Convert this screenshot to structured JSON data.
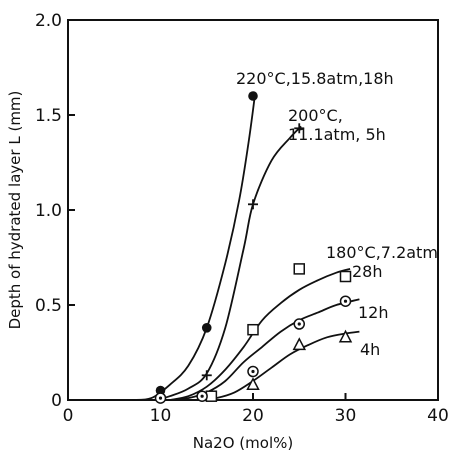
{
  "chart_data": {
    "type": "scatter",
    "xlabel": "Na2O (mol%)",
    "ylabel": "Depth of hydrated layer L (mm)",
    "xlim": [
      0,
      40
    ],
    "ylim": [
      0,
      2.0
    ],
    "x_ticks": [
      0,
      10,
      20,
      30,
      40
    ],
    "y_ticks": [
      0,
      0.5,
      1.0,
      1.5,
      2.0
    ],
    "x_tick_labels": [
      "0",
      "10",
      "20",
      "30",
      "40"
    ],
    "y_tick_labels": [
      "0",
      "0.5",
      "1.0",
      "1.5",
      "2.0"
    ],
    "grid": false,
    "series": [
      {
        "name": "220°C,15.8atm,18h",
        "marker": "filled-circle",
        "points": [
          [
            10,
            0.05
          ],
          [
            15,
            0.38
          ],
          [
            20,
            1.6
          ]
        ],
        "curve": [
          [
            7,
            0
          ],
          [
            9,
            0.01
          ],
          [
            11,
            0.08
          ],
          [
            13,
            0.18
          ],
          [
            15,
            0.38
          ],
          [
            17,
            0.72
          ],
          [
            18.5,
            1.05
          ],
          [
            19.5,
            1.35
          ],
          [
            20.2,
            1.6
          ]
        ]
      },
      {
        "name": "200°C, 11.1atm, 5h",
        "marker": "plus",
        "points": [
          [
            15,
            0.13
          ],
          [
            20,
            1.03
          ],
          [
            25,
            1.43
          ]
        ],
        "curve": [
          [
            9.5,
            0
          ],
          [
            11,
            0.02
          ],
          [
            13,
            0.06
          ],
          [
            15,
            0.14
          ],
          [
            17,
            0.38
          ],
          [
            19,
            0.8
          ],
          [
            20,
            1.03
          ],
          [
            22,
            1.26
          ],
          [
            24,
            1.38
          ],
          [
            25.2,
            1.44
          ]
        ]
      },
      {
        "name": "28h",
        "marker": "square",
        "points": [
          [
            15.5,
            0.02
          ],
          [
            20,
            0.37
          ],
          [
            25,
            0.69
          ],
          [
            30,
            0.65
          ]
        ],
        "curve": [
          [
            11,
            0
          ],
          [
            13,
            0.02
          ],
          [
            15,
            0.07
          ],
          [
            17,
            0.16
          ],
          [
            19,
            0.28
          ],
          [
            21,
            0.42
          ],
          [
            23,
            0.51
          ],
          [
            25,
            0.58
          ],
          [
            27,
            0.63
          ],
          [
            29,
            0.67
          ],
          [
            30.5,
            0.69
          ]
        ]
      },
      {
        "name": "12h",
        "marker": "dotted-circle",
        "points": [
          [
            10,
            0.01
          ],
          [
            14.5,
            0.02
          ],
          [
            20,
            0.15
          ],
          [
            25,
            0.4
          ],
          [
            30,
            0.52
          ]
        ],
        "curve": [
          [
            11,
            0
          ],
          [
            13,
            0.01
          ],
          [
            15,
            0.04
          ],
          [
            17,
            0.1
          ],
          [
            19,
            0.2
          ],
          [
            21,
            0.28
          ],
          [
            23,
            0.36
          ],
          [
            25,
            0.42
          ],
          [
            27,
            0.46
          ],
          [
            29,
            0.5
          ],
          [
            31.5,
            0.53
          ]
        ]
      },
      {
        "name": "4h",
        "marker": "triangle",
        "points": [
          [
            20,
            0.08
          ],
          [
            25,
            0.29
          ],
          [
            30,
            0.33
          ]
        ],
        "curve": [
          [
            14,
            0
          ],
          [
            16,
            0.01
          ],
          [
            18,
            0.04
          ],
          [
            20,
            0.1
          ],
          [
            22,
            0.17
          ],
          [
            24,
            0.24
          ],
          [
            26,
            0.29
          ],
          [
            28,
            0.33
          ],
          [
            30,
            0.35
          ],
          [
            31.5,
            0.36
          ]
        ]
      }
    ],
    "annotations": {
      "line220": "220°C,15.8atm,18h",
      "line200a": "200°C,",
      "line200b": "11.1atm, 5h",
      "line180": "180°C,7.2atm",
      "label28": "28h",
      "label12": "12h",
      "label4": "4h"
    }
  }
}
